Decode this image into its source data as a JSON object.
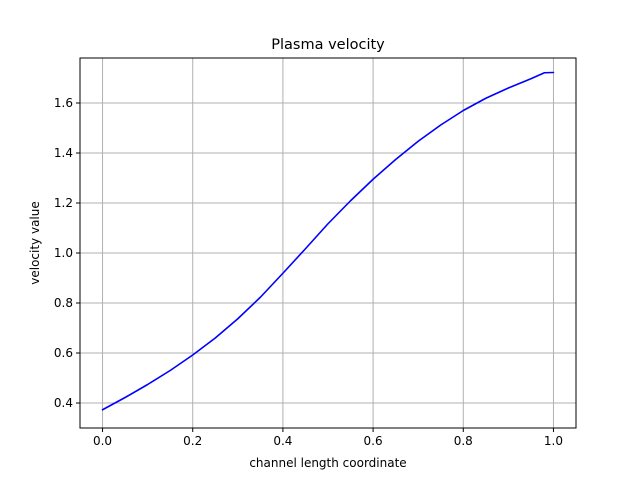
{
  "chart_data": {
    "type": "line",
    "title": "Plasma velocity",
    "xlabel": "channel length coordinate",
    "ylabel": "velocity value",
    "xlim": [
      -0.05,
      1.05
    ],
    "ylim": [
      0.3,
      1.78
    ],
    "xticks": [
      0.0,
      0.2,
      0.4,
      0.6,
      0.8,
      1.0
    ],
    "xtick_labels": [
      "0.0",
      "0.2",
      "0.4",
      "0.6",
      "0.8",
      "1.0"
    ],
    "yticks": [
      0.4,
      0.6,
      0.8,
      1.0,
      1.2,
      1.4,
      1.6
    ],
    "ytick_labels": [
      "0.4",
      "0.6",
      "0.8",
      "1.0",
      "1.2",
      "1.4",
      "1.6"
    ],
    "grid": true,
    "legend": "none",
    "series": [
      {
        "color": "#0000ff",
        "x": [
          0.0,
          0.05,
          0.1,
          0.15,
          0.2,
          0.25,
          0.3,
          0.35,
          0.4,
          0.45,
          0.5,
          0.55,
          0.6,
          0.65,
          0.7,
          0.75,
          0.8,
          0.85,
          0.9,
          0.95,
          0.98,
          1.0
        ],
        "y": [
          0.373,
          0.422,
          0.474,
          0.53,
          0.592,
          0.66,
          0.737,
          0.823,
          0.919,
          1.017,
          1.117,
          1.209,
          1.295,
          1.374,
          1.447,
          1.512,
          1.57,
          1.619,
          1.66,
          1.697,
          1.721,
          1.722
        ]
      }
    ]
  }
}
